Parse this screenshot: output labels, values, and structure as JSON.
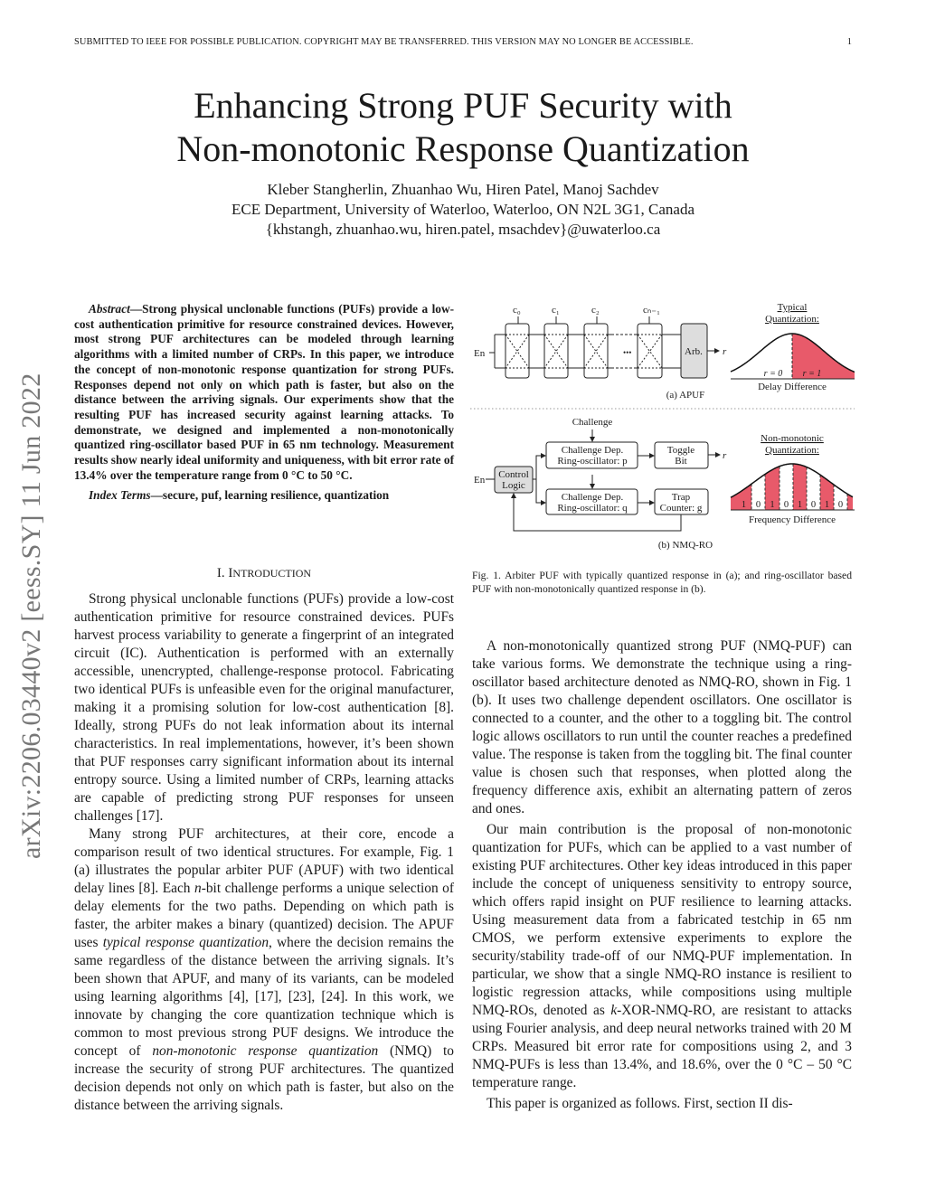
{
  "header": {
    "notice": "SUBMITTED TO IEEE FOR POSSIBLE PUBLICATION. COPYRIGHT MAY BE TRANSFERRED. THIS VERSION MAY NO LONGER BE ACCESSIBLE.",
    "page_number": "1"
  },
  "arxiv_stamp": "arXiv:2206.03440v2  [eess.SY]  11 Jun 2022",
  "title_line1": "Enhancing Strong PUF Security with",
  "title_line2": "Non-monotonic Response Quantization",
  "authors": "Kleber Stangherlin, Zhuanhao Wu, Hiren Patel, Manoj Sachdev",
  "affiliation": "ECE Department, University of Waterloo, Waterloo, ON N2L 3G1, Canada",
  "emails": "{khstangh, zhuanhao.wu, hiren.patel, msachdev}@uwaterloo.ca",
  "abstract": {
    "label": "Abstract",
    "text": "—Strong physical unclonable functions (PUFs) provide a low-cost authentication primitive for resource constrained devices. However, most strong PUF architectures can be modeled through learning algorithms with a limited number of CRPs. In this paper, we introduce the concept of non-monotonic response quantization for strong PUFs. Responses depend not only on which path is faster, but also on the distance between the arriving signals. Our experiments show that the resulting PUF has increased security against learning attacks. To demonstrate, we designed and implemented a non-monotonically quantized ring-oscillator based PUF in 65 nm technology. Measurement results show nearly ideal uniformity and uniqueness, with bit error rate of 13.4% over the temperature range from 0 °C to 50 °C.",
    "index_label": "Index Terms",
    "index_text": "—secure, puf, learning resilience, quantization"
  },
  "section1": {
    "numeral": "I. I",
    "title": "NTRODUCTION"
  },
  "intro": {
    "p1": "Strong physical unclonable functions (PUFs) provide a low-cost authentication primitive for resource constrained devices. PUFs harvest process variability to generate a fingerprint of an integrated circuit (IC). Authentication is performed with an externally accessible, unencrypted, challenge-response protocol. Fabricating two identical PUFs is unfeasible even for the original manufacturer, making it a promising solution for low-cost authentication [8]. Ideally, strong PUFs do not leak information about its internal characteristics. In real implementations, however, it’s been shown that PUF responses carry significant information about its internal entropy source. Using a limited number of CRPs, learning attacks are capable of predicting strong PUF responses for unseen challenges [17].",
    "p2a": "Many strong PUF architectures, at their core, encode a comparison result of two identical structures. For example, Fig. 1 (a) illustrates the popular arbiter PUF (APUF) with two identical delay lines [8]. Each ",
    "p2n": "n",
    "p2b": "-bit challenge performs a unique selection of delay elements for the two paths. Depending on which path is faster, the arbiter makes a binary (quantized) decision. The APUF uses ",
    "p2c": "typical response quantization",
    "p2d": ", where the decision remains the same regardless of the distance between the arriving signals. It’s been shown that APUF, and many of its variants, can be modeled using learning algorithms [4], [17], [23], [24]. In this work, we innovate by changing the core quantization technique which is common to most previous strong PUF designs. We introduce the concept of ",
    "p2e": "non-monotonic response quantization",
    "p2f": " (NMQ) to increase the security of strong PUF architectures. The quantized decision depends not only on which path is faster, but also on the distance between the arriving signals."
  },
  "figure": {
    "c0": "c₀",
    "c1": "c₁",
    "c2": "c₂",
    "cn": "cₙ₋₁",
    "en": "En",
    "arb": "Arb.",
    "r": "r",
    "dots": "•••",
    "typical_l1": "Typical",
    "typical_l2": "Quantization:",
    "r0": "r = 0",
    "r1": "r = 1",
    "delay_axis": "Delay Difference",
    "sub_a": "(a) APUF",
    "challenge": "Challenge",
    "ro_p_l1": "Challenge Dep.",
    "ro_p_l2": "Ring-oscillator: p",
    "ro_q_l1": "Challenge Dep.",
    "ro_q_l2": "Ring-oscillator: q",
    "toggle_l1": "Toggle",
    "toggle_l2": "Bit",
    "trap_l1": "Trap",
    "trap_l2": "Counter: g",
    "ctrl_l1": "Control",
    "ctrl_l2": "Logic",
    "nm_l1": "Non-monotonic",
    "nm_l2": "Quantization:",
    "bits": [
      "1",
      "0",
      "1",
      "0",
      "1",
      "0",
      "1",
      "0"
    ],
    "freq_axis": "Frequency Difference",
    "sub_b": "(b) NMQ-RO",
    "accent_color": "#e85a6a"
  },
  "caption": "Fig. 1.   Arbiter PUF with typically quantized response in (a); and ring-oscillator based PUF with non-monotonically quantized response in (b).",
  "right": {
    "p1": "A non-monotonically quantized strong PUF (NMQ-PUF) can take various forms. We demonstrate the technique using a ring-oscillator based architecture denoted as NMQ-RO, shown in Fig. 1 (b). It uses two challenge dependent oscillators. One oscillator is connected to a counter, and the other to a toggling bit. The control logic allows oscillators to run until the counter reaches a predefined value. The response is taken from the toggling bit. The final counter value is chosen such that responses, when plotted along the frequency difference axis, exhibit an alternating pattern of zeros and ones.",
    "p2a": "Our main contribution is the proposal of non-monotonic quantization for PUFs, which can be applied to a vast number of existing PUF architectures. Other key ideas introduced in this paper include the concept of uniqueness sensitivity to entropy source, which offers rapid insight on PUF resilience to learning attacks. Using measurement data from a fabricated testchip in 65 nm CMOS, we perform extensive experiments to explore the security/stability trade-off of our NMQ-PUF implementation. In particular, we show that a single NMQ-RO instance is resilient to logistic regression attacks, while compositions using multiple NMQ-ROs, denoted as ",
    "p2k": "k",
    "p2b": "-XOR-NMQ-RO, are resistant to attacks using Fourier analysis, and deep neural networks trained with 20 M CRPs. Measured bit error rate for compositions using 2, and 3 NMQ-PUFs is less than 13.4%, and 18.6%, over the 0 °C – 50 °C temperature range.",
    "p3": "This paper is organized as follows. First, section II dis-"
  }
}
